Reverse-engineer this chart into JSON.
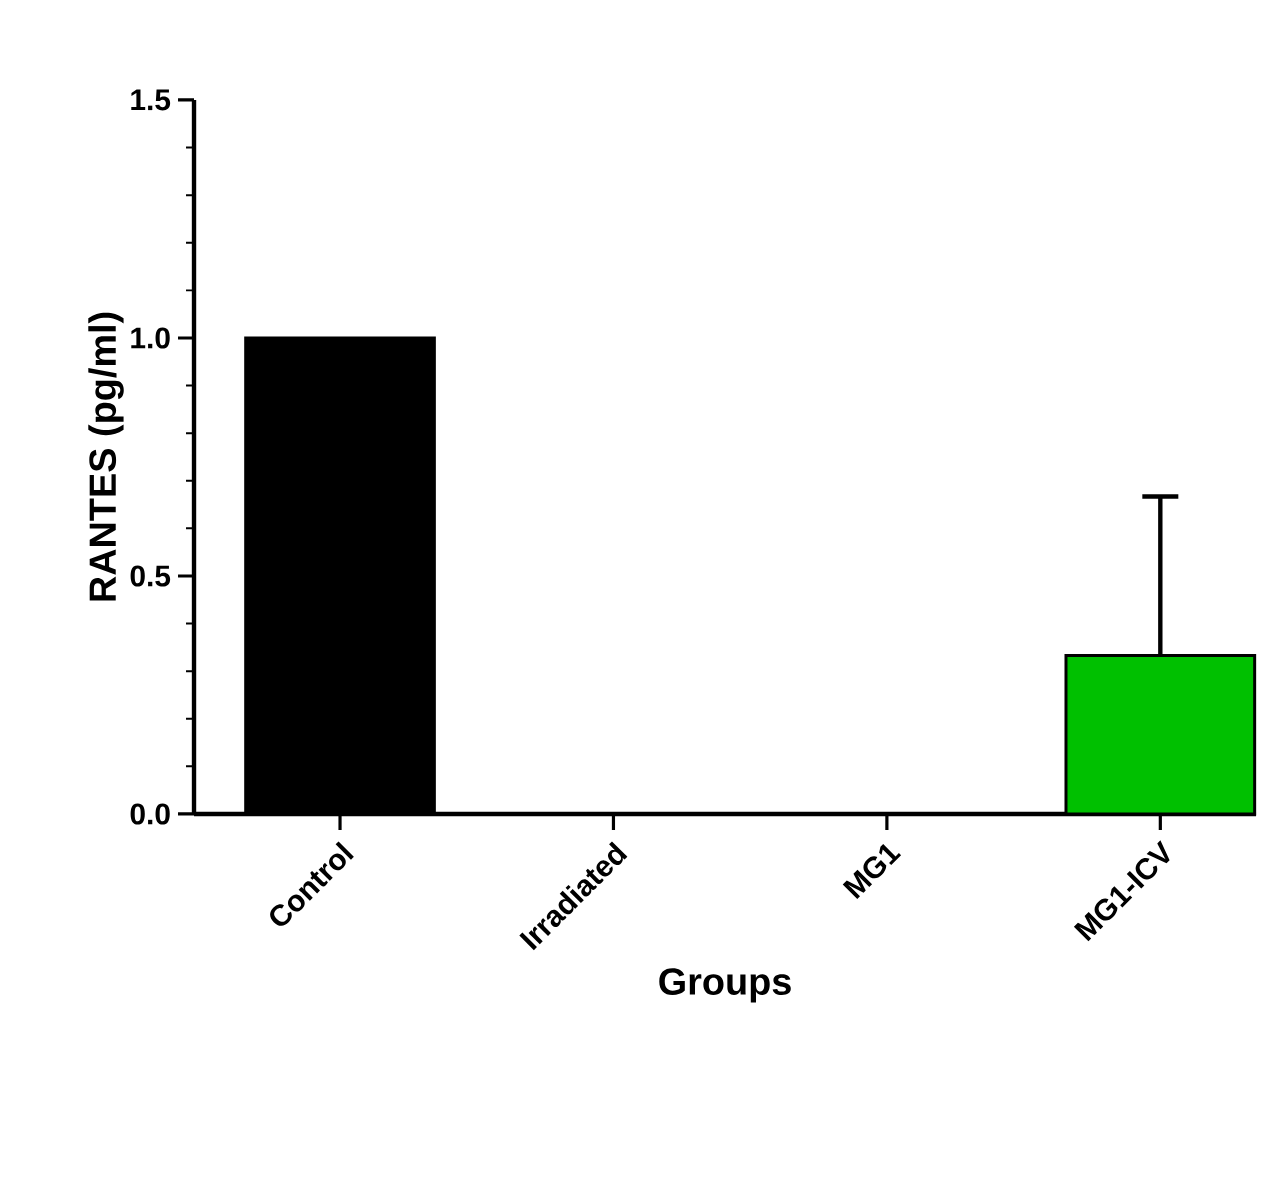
{
  "chart_data": {
    "type": "bar",
    "xlabel": "Groups",
    "ylabel": "RANTES (pg/ml)",
    "categories": [
      "Control",
      "Irradiated",
      "MG1",
      "MG1-ICV"
    ],
    "values": [
      1.0,
      0,
      0,
      0.333
    ],
    "colors": [
      "#000000",
      "#000000",
      "#000000",
      "#00c000"
    ],
    "errors": [
      null,
      null,
      null,
      [
        0.333,
        0.667
      ]
    ],
    "ylim": [
      0,
      1.5
    ],
    "yticks": [
      {
        "value": 0,
        "label": "0.0"
      },
      {
        "value": 0.5,
        "label": "0.5"
      },
      {
        "value": 1.0,
        "label": "1.0"
      },
      {
        "value": 1.5,
        "label": "1.5"
      }
    ],
    "grid": false
  }
}
